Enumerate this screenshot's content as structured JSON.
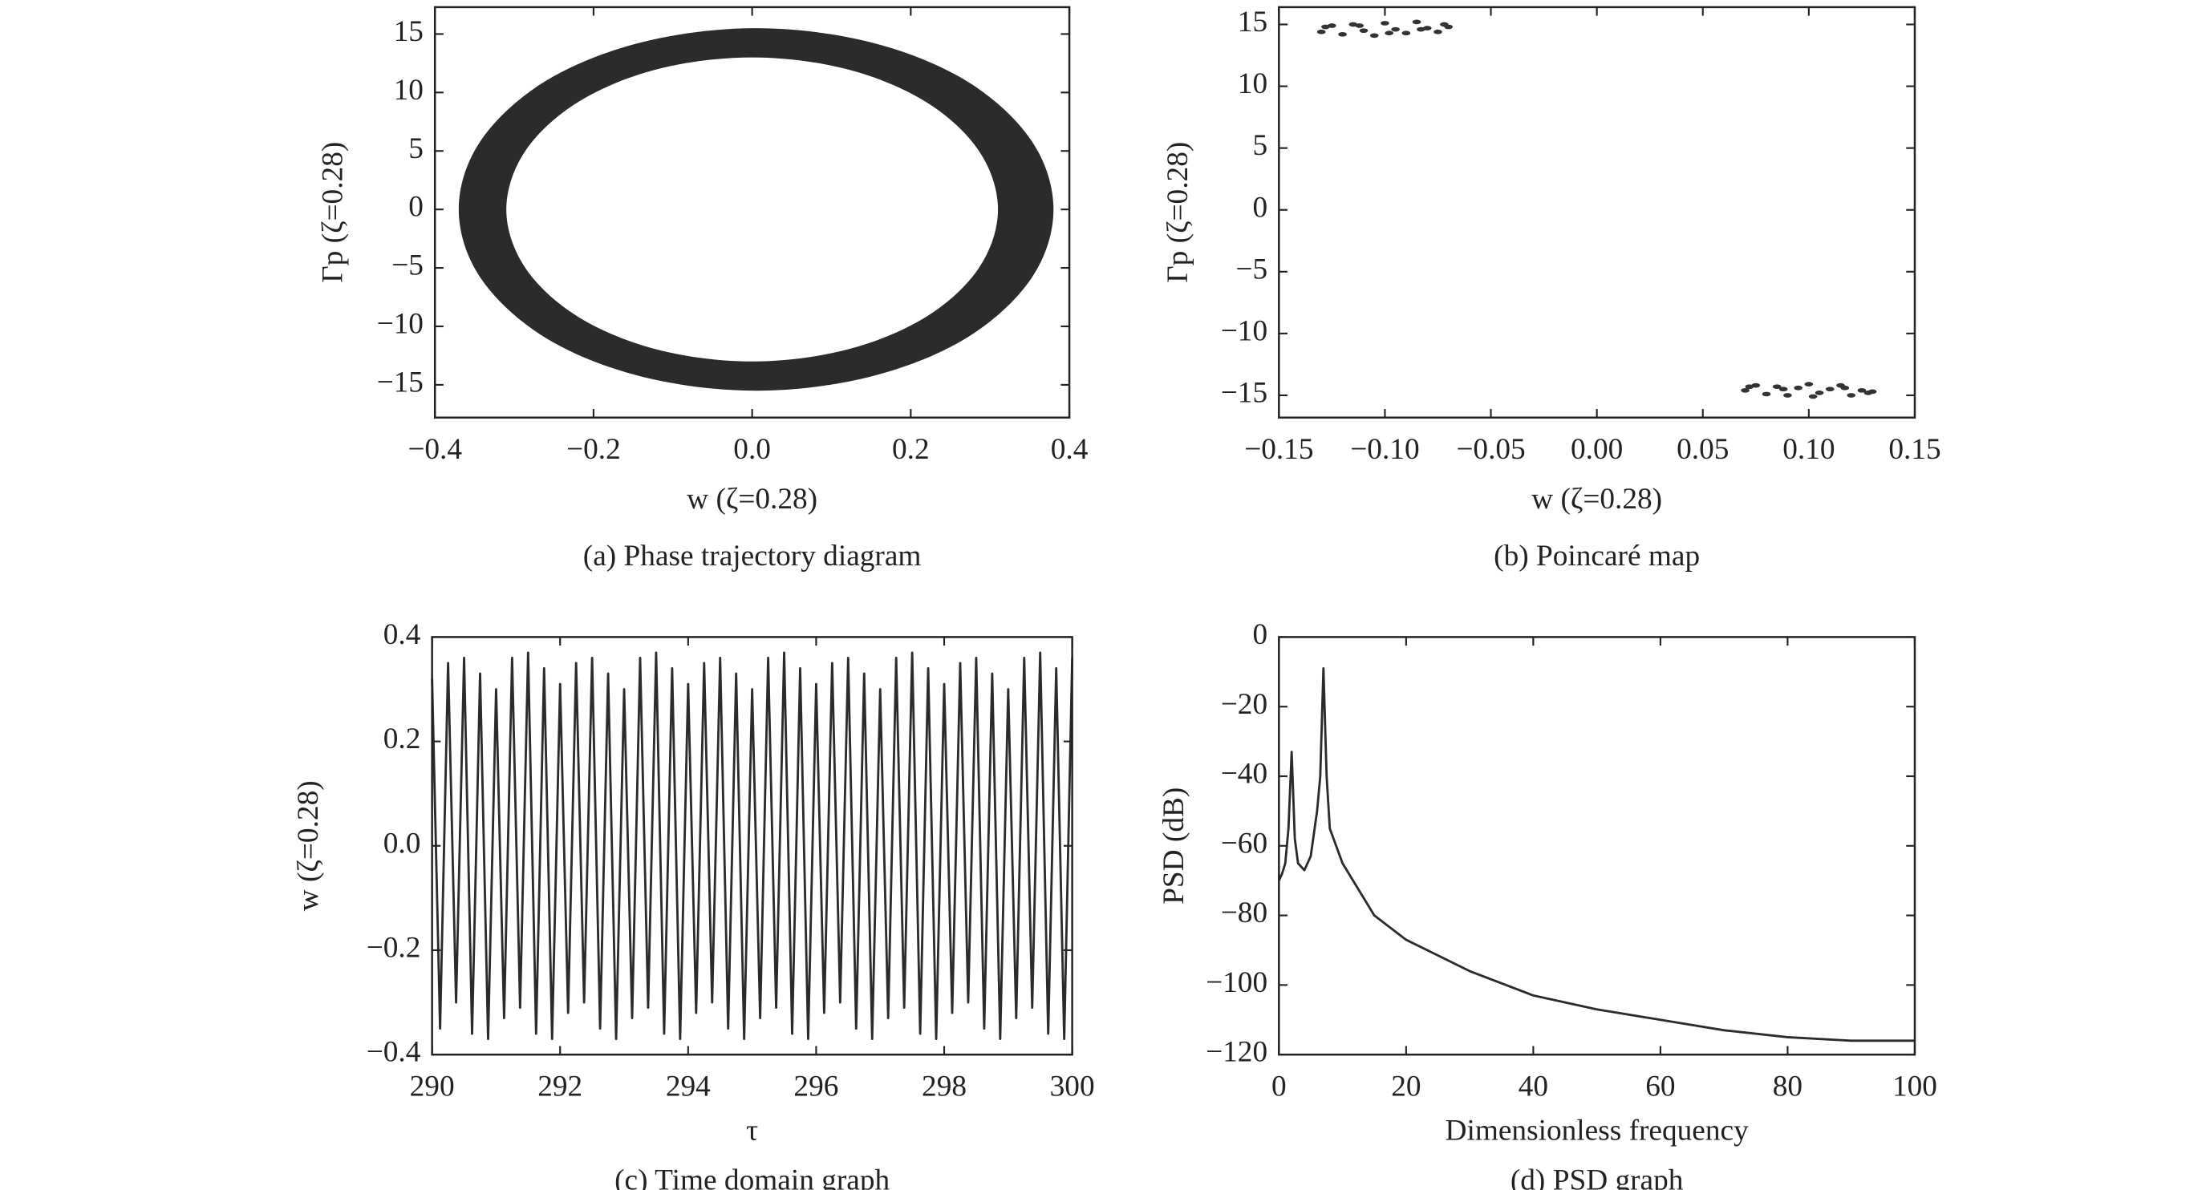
{
  "chart_data": [
    {
      "type": "area",
      "xlabel": "w (ζ=0.28)",
      "ylabel": "Γp (ζ=0.28)",
      "caption": "(a) Phase trajectory diagram",
      "xlim": [
        -0.4,
        0.4
      ],
      "ylim": [
        -17.8,
        17.3
      ],
      "xticks": [
        {
          "value": -0.4,
          "label": "−0.4"
        },
        {
          "value": -0.2,
          "label": "−0.2"
        },
        {
          "value": 0,
          "label": "0.0"
        },
        0.2,
        0.4
      ],
      "yticks": [
        {
          "value": -15,
          "label": "−15"
        },
        {
          "value": -10,
          "label": "−10"
        },
        {
          "value": -5,
          "label": "−5"
        },
        0,
        5,
        10,
        15
      ],
      "series": [
        {
          "color": "#2b2b2b",
          "x": [
            0.38,
            0.352,
            0.27,
            0.149,
            0.005,
            -0.139,
            -0.26,
            -0.342,
            -0.37,
            -0.342,
            -0.26,
            -0.139,
            0.005,
            0.149,
            0.27,
            0.352
          ],
          "values": [
            0,
            5.9,
            11.0,
            14.3,
            15.5,
            14.3,
            11.0,
            5.9,
            0,
            -5.9,
            -11.0,
            -14.3,
            -15.5,
            -14.3,
            -11.0,
            -5.9
          ]
        },
        {
          "color": "#ffffff",
          "x": [
            0.31,
            0.286,
            0.219,
            0.119,
            0,
            -0.119,
            -0.219,
            -0.286,
            -0.31,
            -0.286,
            -0.219,
            -0.119,
            0,
            0.119,
            0.219,
            0.286
          ],
          "values": [
            0,
            5.0,
            9.2,
            12.0,
            13.0,
            12.0,
            9.2,
            5.0,
            0,
            -5.0,
            -9.2,
            -12.0,
            -13.0,
            -12.0,
            -9.2,
            -5.0
          ]
        }
      ]
    },
    {
      "type": "scatter",
      "xlabel": "w (ζ=0.28)",
      "ylabel": "Γp (ζ=0.28)",
      "caption": "(b) Poincaré map",
      "xlim": [
        -0.15,
        0.15
      ],
      "ylim": [
        -16.8,
        16.4
      ],
      "xticks": [
        {
          "value": -0.15,
          "label": "−0.15"
        },
        {
          "value": -0.1,
          "label": "−0.10"
        },
        {
          "value": -0.05,
          "label": "−0.05"
        },
        {
          "value": 0,
          "label": "0.00"
        },
        0.05,
        {
          "value": 0.1,
          "label": "0.10"
        },
        0.15
      ],
      "yticks": [
        {
          "value": -15,
          "label": "−15"
        },
        {
          "value": -10,
          "label": "−10"
        },
        {
          "value": -5,
          "label": "−5"
        },
        0,
        5,
        10,
        15
      ],
      "series": [
        {
          "color": "#333333",
          "x": [
            -0.13,
            -0.125,
            -0.12,
            -0.115,
            -0.11,
            -0.105,
            -0.1,
            -0.095,
            -0.09,
            -0.085,
            -0.08,
            -0.075,
            -0.07,
            -0.128,
            -0.112,
            -0.098,
            -0.083,
            -0.072
          ],
          "values": [
            14.4,
            14.9,
            14.2,
            15.0,
            14.5,
            14.1,
            15.1,
            14.6,
            14.3,
            15.2,
            14.7,
            14.4,
            14.8,
            14.8,
            14.9,
            14.3,
            14.6,
            15.0
          ]
        },
        {
          "color": "#333333",
          "x": [
            0.07,
            0.075,
            0.08,
            0.085,
            0.09,
            0.095,
            0.1,
            0.105,
            0.11,
            0.115,
            0.12,
            0.125,
            0.13,
            0.072,
            0.088,
            0.102,
            0.117,
            0.128
          ],
          "values": [
            -14.6,
            -14.2,
            -14.9,
            -14.3,
            -15.0,
            -14.4,
            -14.1,
            -14.8,
            -14.5,
            -14.2,
            -15.0,
            -14.6,
            -14.7,
            -14.3,
            -14.5,
            -15.1,
            -14.4,
            -14.8
          ]
        }
      ]
    },
    {
      "type": "line",
      "xlabel": "τ",
      "ylabel": "w (ζ=0.28)",
      "caption": "(c) Time domain graph",
      "xlim": [
        290,
        300
      ],
      "ylim": [
        -0.4,
        0.4
      ],
      "xticks": [
        290,
        292,
        294,
        296,
        298,
        300
      ],
      "yticks": [
        {
          "value": -0.4,
          "label": "−0.4"
        },
        {
          "value": -0.2,
          "label": "−0.2"
        },
        {
          "value": 0,
          "label": "0.0"
        },
        0.2,
        0.4
      ],
      "series": [
        {
          "color": "#2b2b2b",
          "x": [
            290,
            290.125,
            290.25,
            290.375,
            290.5,
            290.625,
            290.75,
            290.875,
            291,
            291.125,
            291.25,
            291.375,
            291.5,
            291.625,
            291.75,
            291.875,
            292,
            292.125,
            292.25,
            292.375,
            292.5,
            292.625,
            292.75,
            292.875,
            293,
            293.125,
            293.25,
            293.375,
            293.5,
            293.625,
            293.75,
            293.875,
            294,
            294.125,
            294.25,
            294.375,
            294.5,
            294.625,
            294.75,
            294.875,
            295,
            295.125,
            295.25,
            295.375,
            295.5,
            295.625,
            295.75,
            295.875,
            296,
            296.125,
            296.25,
            296.375,
            296.5,
            296.625,
            296.75,
            296.875,
            297,
            297.125,
            297.25,
            297.375,
            297.5,
            297.625,
            297.75,
            297.875,
            298,
            298.125,
            298.25,
            298.375,
            298.5,
            298.625,
            298.75,
            298.875,
            299,
            299.125,
            299.25,
            299.375,
            299.5,
            299.625,
            299.75,
            299.875,
            300
          ],
          "values": [
            0.32,
            -0.35,
            0.35,
            -0.3,
            0.36,
            -0.36,
            0.33,
            -0.37,
            0.3,
            -0.33,
            0.36,
            -0.31,
            0.37,
            -0.36,
            0.34,
            -0.37,
            0.31,
            -0.32,
            0.35,
            -0.3,
            0.36,
            -0.35,
            0.33,
            -0.37,
            0.3,
            -0.33,
            0.36,
            -0.31,
            0.37,
            -0.36,
            0.34,
            -0.37,
            0.31,
            -0.32,
            0.35,
            -0.3,
            0.36,
            -0.35,
            0.33,
            -0.37,
            0.3,
            -0.33,
            0.36,
            -0.31,
            0.37,
            -0.36,
            0.34,
            -0.37,
            0.31,
            -0.32,
            0.35,
            -0.3,
            0.36,
            -0.35,
            0.33,
            -0.37,
            0.3,
            -0.33,
            0.36,
            -0.31,
            0.37,
            -0.36,
            0.34,
            -0.37,
            0.31,
            -0.32,
            0.35,
            -0.3,
            0.36,
            -0.35,
            0.33,
            -0.37,
            0.3,
            -0.33,
            0.36,
            -0.31,
            0.37,
            -0.36,
            0.34,
            -0.37,
            0.36
          ]
        }
      ]
    },
    {
      "type": "line",
      "xlabel": "Dimensionless frequency",
      "ylabel": "PSD (dB)",
      "caption": "(d) PSD graph",
      "xlim": [
        0,
        100
      ],
      "ylim": [
        -120,
        0
      ],
      "xticks": [
        0,
        20,
        40,
        60,
        80,
        100
      ],
      "yticks": [
        {
          "value": -120,
          "label": "−120"
        },
        {
          "value": -100,
          "label": "−100"
        },
        {
          "value": -80,
          "label": "−80"
        },
        {
          "value": -60,
          "label": "−60"
        },
        {
          "value": -40,
          "label": "−40"
        },
        {
          "value": -20,
          "label": "−20"
        },
        0
      ],
      "series": [
        {
          "color": "#2b2b2b",
          "x": [
            0,
            0.5,
            1,
            1.5,
            2,
            2.5,
            3,
            4,
            5,
            6,
            6.5,
            7,
            7.5,
            8,
            10,
            15,
            20,
            30,
            40,
            50,
            60,
            70,
            80,
            90,
            100
          ],
          "values": [
            -70,
            -68,
            -65,
            -55,
            -33,
            -58,
            -65,
            -67,
            -63,
            -50,
            -40,
            -9,
            -40,
            -55,
            -65,
            -80,
            -87,
            -96,
            -103,
            -107,
            -110,
            -113,
            -115,
            -116,
            -116
          ]
        }
      ]
    }
  ]
}
